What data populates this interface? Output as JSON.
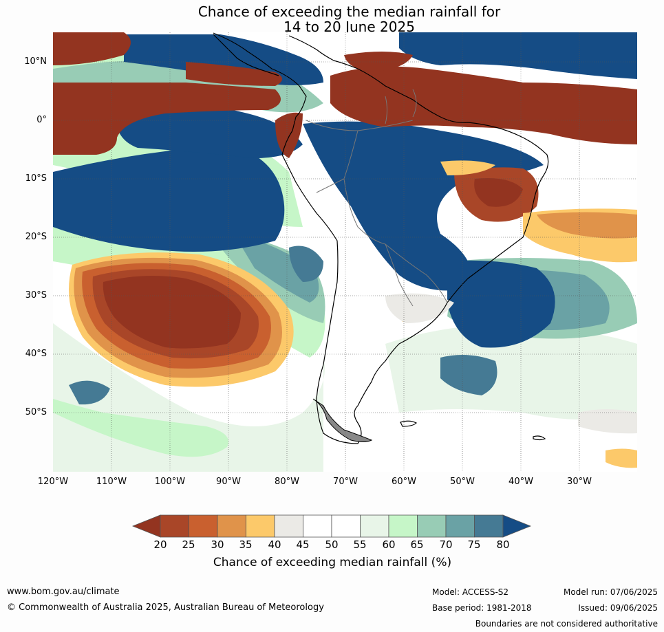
{
  "title": {
    "line1": "Chance of exceeding the median rainfall for",
    "line2": "14 to 20 June 2025"
  },
  "map": {
    "lat_ticks": [
      "10°N",
      "0°",
      "10°S",
      "20°S",
      "30°S",
      "40°S",
      "50°S"
    ],
    "lon_ticks": [
      "120°W",
      "110°W",
      "100°W",
      "90°W",
      "80°W",
      "70°W",
      "60°W",
      "50°W",
      "40°W",
      "30°W"
    ],
    "grid": "dotted",
    "colors": {
      "c20": "#933420",
      "c25": "#a94628",
      "c30": "#c9602f",
      "c35": "#e0934a",
      "c40": "#fcc96a",
      "c45": "#ebeae6",
      "c50": "#ffffff",
      "c55": "#ffffff",
      "c60": "#e8f5e8",
      "c65": "#c6f6c8",
      "c70": "#98ccb5",
      "c75": "#6aa2a5",
      "c80": "#457a94",
      "c85": "#154c85",
      "coast": "#000000",
      "border": "#777777"
    }
  },
  "colorbar": {
    "ticks": [
      "20",
      "25",
      "30",
      "35",
      "40",
      "45",
      "50",
      "55",
      "60",
      "65",
      "70",
      "75",
      "80"
    ],
    "label": "Chance of exceeding median rainfall (%)",
    "colors": [
      "#933420",
      "#a94628",
      "#c9602f",
      "#e0934a",
      "#fcc96a",
      "#ebeae6",
      "#ffffff",
      "#ffffff",
      "#e8f5e8",
      "#c6f6c8",
      "#98ccb5",
      "#6aa2a5",
      "#457a94",
      "#154c85"
    ]
  },
  "footer": {
    "website": "www.bom.gov.au/climate",
    "copyright": "© Commonwealth of Australia 2025, Australian Bureau of Meteorology",
    "model": "Model: ACCESS-S2",
    "base_period": "Base period: 1981-2018",
    "model_run": "Model run: 07/06/2025",
    "issued": "Issued: 09/06/2025",
    "disclaimer": "Boundaries are not considered authoritative"
  }
}
